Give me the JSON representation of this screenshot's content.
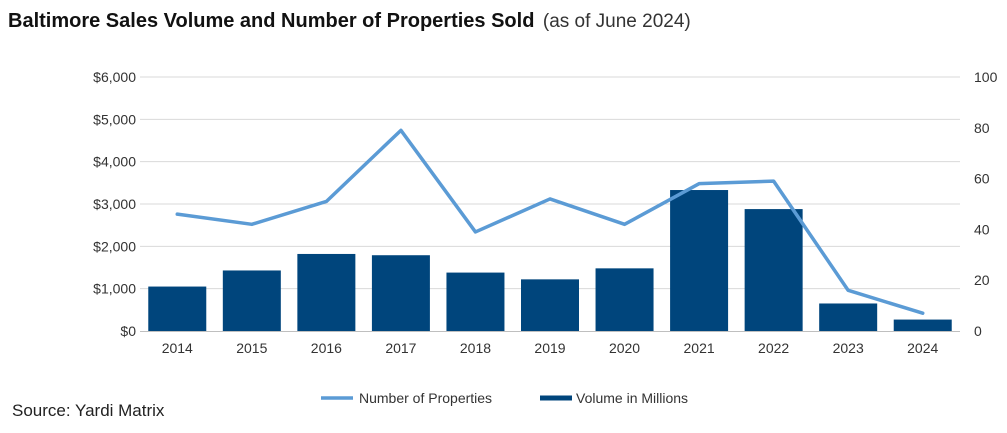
{
  "title": {
    "main": "Baltimore Sales Volume and Number of Properties Sold",
    "sub": "(as of June 2024)"
  },
  "source": "Source: Yardi Matrix",
  "colors": {
    "bar": "#00457c",
    "line": "#5b9bd5",
    "grid": "#d9d9d9",
    "axis": "#bfbfbf"
  },
  "chart_data": {
    "type": "bar",
    "categories": [
      "2014",
      "2015",
      "2016",
      "2017",
      "2018",
      "2019",
      "2020",
      "2021",
      "2022",
      "2023",
      "2024"
    ],
    "series": [
      {
        "name": "Volume in Millions",
        "type": "bar",
        "axis": "left",
        "values": [
          1050,
          1430,
          1820,
          1790,
          1380,
          1220,
          1480,
          3330,
          2880,
          650,
          270
        ]
      },
      {
        "name": "Number of Properties",
        "type": "line",
        "axis": "right",
        "values": [
          46,
          42,
          51,
          79,
          39,
          52,
          42,
          58,
          59,
          16,
          7
        ]
      }
    ],
    "left_axis": {
      "ylim": [
        0,
        6000
      ],
      "ticks": [
        0,
        1000,
        2000,
        3000,
        4000,
        5000,
        6000
      ],
      "tick_labels": [
        "$0",
        "$1,000",
        "$2,000",
        "$3,000",
        "$4,000",
        "$5,000",
        "$6,000"
      ]
    },
    "right_axis": {
      "ylim": [
        0,
        100
      ],
      "ticks": [
        0,
        20,
        40,
        60,
        80,
        100
      ],
      "tick_labels": [
        "0",
        "20",
        "40",
        "60",
        "80",
        "100"
      ]
    },
    "grid": true,
    "legend": {
      "placement": "bottom",
      "entries": [
        "Number of Properties",
        "Volume in Millions"
      ]
    }
  }
}
